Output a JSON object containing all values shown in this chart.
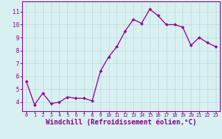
{
  "x": [
    0,
    1,
    2,
    3,
    4,
    5,
    6,
    7,
    8,
    9,
    10,
    11,
    12,
    13,
    14,
    15,
    16,
    17,
    18,
    19,
    20,
    21,
    22,
    23
  ],
  "y": [
    5.6,
    3.8,
    4.7,
    3.9,
    4.0,
    4.4,
    4.3,
    4.3,
    4.1,
    6.4,
    7.5,
    8.3,
    9.5,
    10.4,
    10.1,
    11.2,
    10.7,
    10.0,
    10.0,
    9.8,
    8.4,
    9.0,
    8.6,
    8.3
  ],
  "line_color": "#990099",
  "marker": "D",
  "marker_size": 2,
  "line_width": 1.0,
  "bg_color": "#d8f0f0",
  "grid_color": "#b8d8d8",
  "axis_color": "#880088",
  "tick_color": "#880088",
  "xlabel": "Windchill (Refroidissement éolien,°C)",
  "xlabel_fontsize": 7,
  "ylabel_ticks": [
    4,
    5,
    6,
    7,
    8,
    9,
    10,
    11
  ],
  "xtick_labels": [
    "0",
    "1",
    "2",
    "3",
    "4",
    "5",
    "6",
    "7",
    "8",
    "9",
    "10",
    "11",
    "12",
    "13",
    "14",
    "15",
    "16",
    "17",
    "18",
    "19",
    "20",
    "21",
    "22",
    "23"
  ],
  "xlim": [
    -0.5,
    23.5
  ],
  "ylim": [
    3.3,
    11.8
  ]
}
